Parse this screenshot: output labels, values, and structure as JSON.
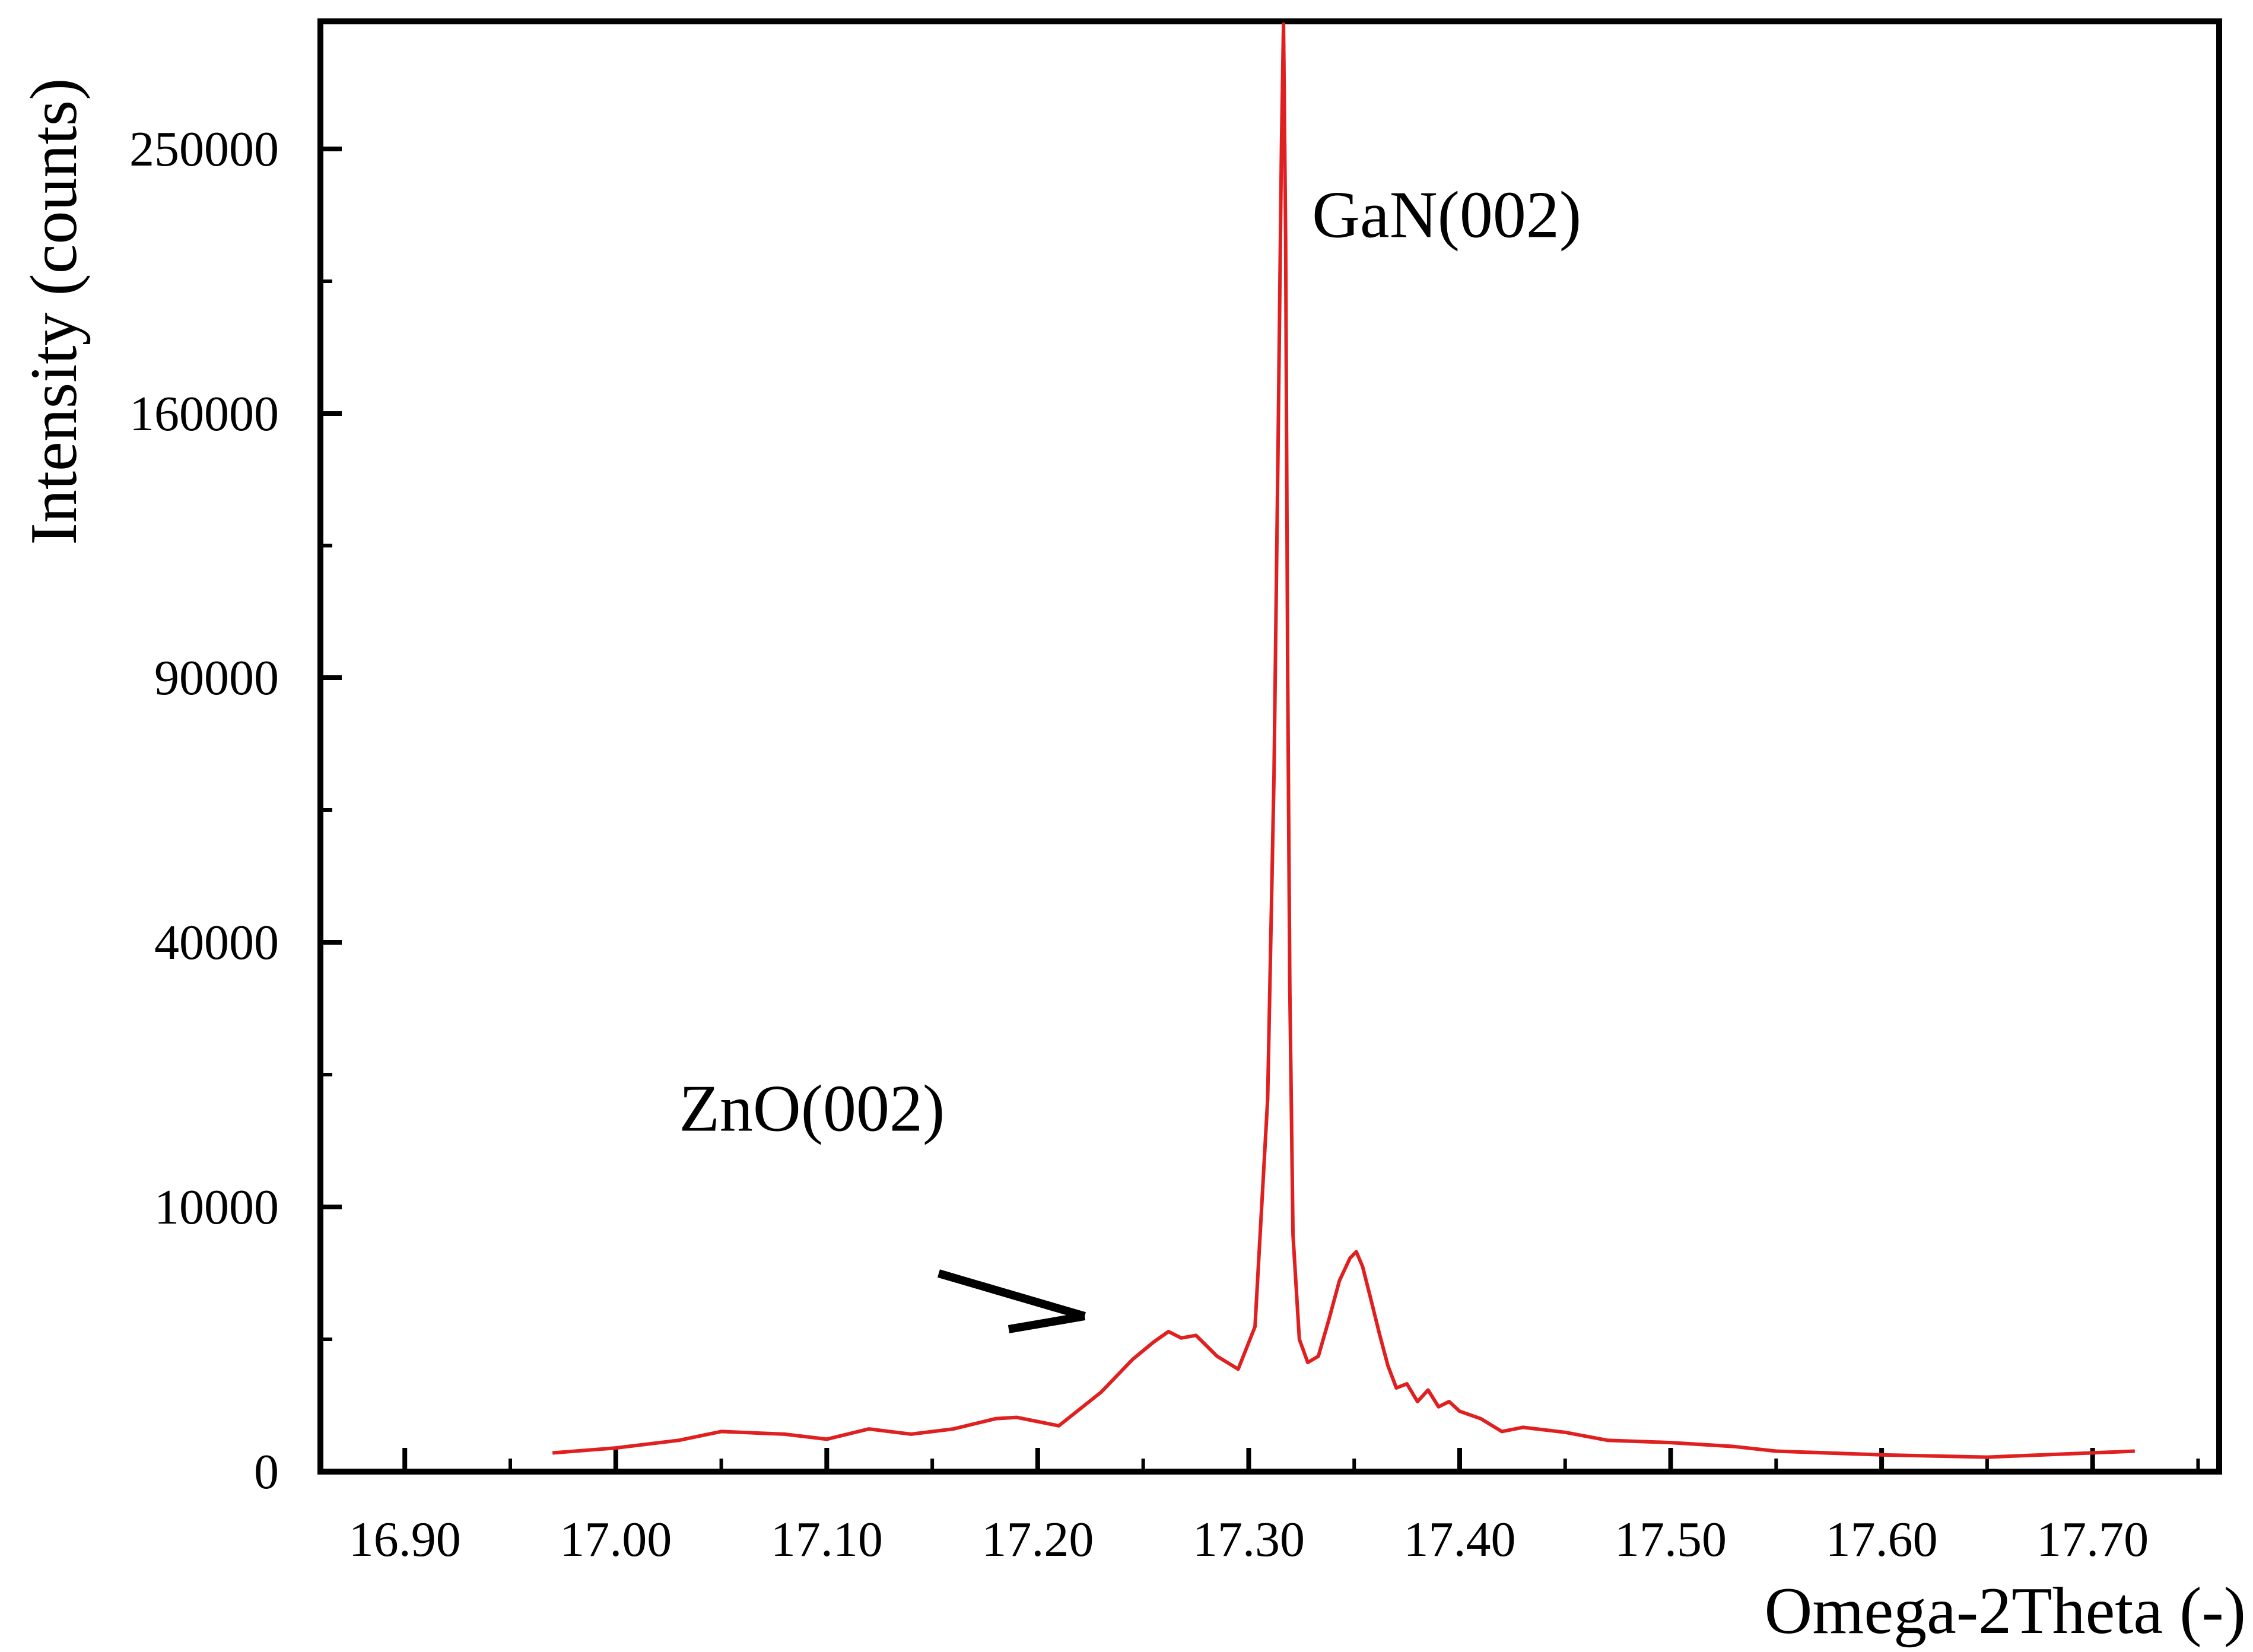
{
  "chart_data": {
    "type": "line",
    "title": "",
    "xlabel": "Omega-2Theta (-)",
    "ylabel": "Intensity (counts)",
    "xlim": [
      16.86,
      17.76
    ],
    "x_ticks": [
      "16.90",
      "17.00",
      "17.10",
      "17.20",
      "17.30",
      "17.40",
      "17.50",
      "17.60",
      "17.70"
    ],
    "y_scale": "nonlinear",
    "y_ticks": [
      "0",
      "10000",
      "40000",
      "90000",
      "160000",
      "250000"
    ],
    "y_tick_values": [
      0,
      10000,
      40000,
      90000,
      160000,
      250000
    ],
    "grid": false,
    "legend": "none",
    "line_color": "#e02020",
    "series": [
      {
        "x": [
          16.97,
          17.0,
          17.03,
          17.05,
          17.08,
          17.1,
          17.12,
          17.14,
          17.16,
          17.18,
          17.19,
          17.21,
          17.23,
          17.245,
          17.255,
          17.262,
          17.268,
          17.275,
          17.285,
          17.295,
          17.303,
          17.309,
          17.312,
          17.314,
          17.3155,
          17.3165,
          17.3175,
          17.3185,
          17.3195,
          17.321,
          17.324,
          17.328,
          17.333,
          17.338,
          17.343,
          17.348,
          17.351,
          17.354,
          17.358,
          17.362,
          17.366,
          17.37,
          17.375,
          17.38,
          17.385,
          17.39,
          17.395,
          17.4,
          17.41,
          17.42,
          17.43,
          17.45,
          17.47,
          17.5,
          17.53,
          17.55,
          17.6,
          17.65,
          17.72
        ],
        "y": [
          50,
          80,
          140,
          230,
          200,
          150,
          260,
          200,
          260,
          400,
          420,
          300,
          900,
          1800,
          2400,
          2800,
          2550,
          2650,
          1900,
          1500,
          3000,
          15000,
          60000,
          150000,
          250000,
          270000,
          200000,
          90000,
          30000,
          8000,
          2500,
          1700,
          1900,
          3300,
          5200,
          6500,
          6900,
          6000,
          4200,
          2700,
          1600,
          1000,
          1100,
          700,
          950,
          600,
          700,
          520,
          400,
          230,
          280,
          220,
          140,
          120,
          90,
          60,
          40,
          30,
          60
        ]
      }
    ],
    "annotations": [
      {
        "text": "GaN(002)",
        "x": 17.33,
        "y": 200000
      },
      {
        "text": "ZnO(002)",
        "x": 17.03,
        "y": 12500
      }
    ]
  }
}
